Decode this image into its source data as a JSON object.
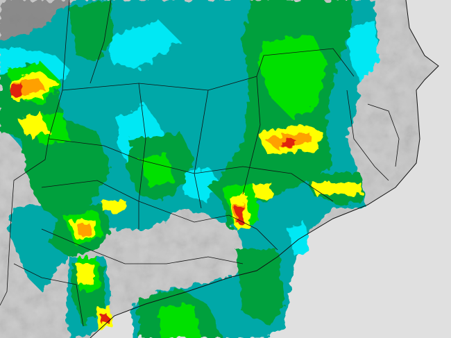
{
  "map": {
    "kind": "weather-radar-reflectivity",
    "colors": {
      "sea": "#e0e0e0",
      "land": "#c4c4c4",
      "mountains": "#7a7a7a",
      "borders": "#111111",
      "rain_levels": [
        "#00a8a8",
        "#00e8f4",
        "#00a03c",
        "#00e000",
        "#ffff00",
        "#ffa000",
        "#e02010"
      ]
    }
  }
}
